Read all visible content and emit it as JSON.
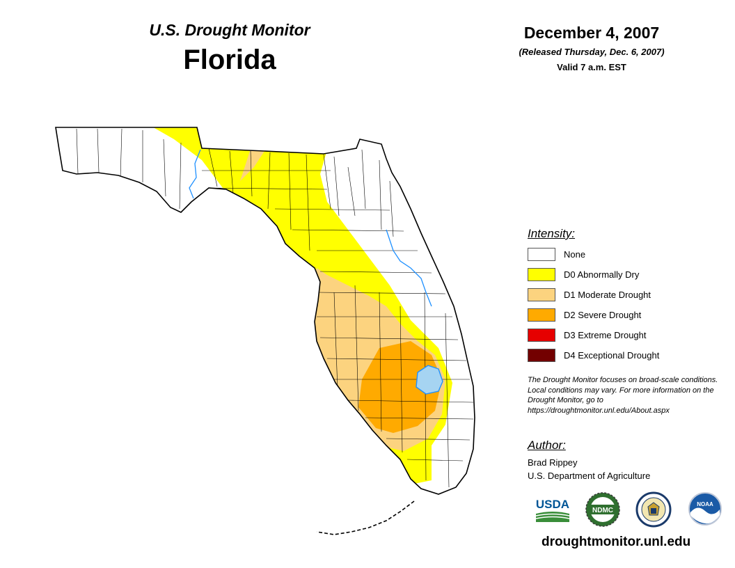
{
  "header": {
    "monitor_title": "U.S. Drought Monitor",
    "state": "Florida",
    "date": "December 4, 2007",
    "release": "(Released Thursday, Dec. 6, 2007)",
    "valid": "Valid 7 a.m. EST"
  },
  "legend": {
    "heading": "Intensity:",
    "items": [
      {
        "label": "None",
        "color": "#ffffff"
      },
      {
        "label": "D0 Abnormally Dry",
        "color": "#ffff00"
      },
      {
        "label": "D1 Moderate Drought",
        "color": "#fcd37f"
      },
      {
        "label": "D2 Severe Drought",
        "color": "#ffaa00"
      },
      {
        "label": "D3 Extreme Drought",
        "color": "#e60000"
      },
      {
        "label": "D4 Exceptional Drought",
        "color": "#730000"
      }
    ]
  },
  "disclaimer": "The Drought Monitor focuses on broad-scale conditions. Local conditions may vary. For more information on the Drought Monitor, go to https://droughtmonitor.unl.edu/About.aspx",
  "author": {
    "heading": "Author:",
    "name": "Brad Rippey",
    "organization": "U.S. Department of Agriculture"
  },
  "logos": {
    "usda": "USDA",
    "ndmc": "NDMC",
    "noaa": "NOAA"
  },
  "website": "droughtmonitor.unl.edu",
  "colors": {
    "water": "#a6d4f2",
    "river": "#1e90ff",
    "usda_blue": "#005596",
    "usda_green": "#3a8e3a",
    "ndmc_green": "#2f6f2f",
    "noaa_blue": "#1a5aa6"
  }
}
